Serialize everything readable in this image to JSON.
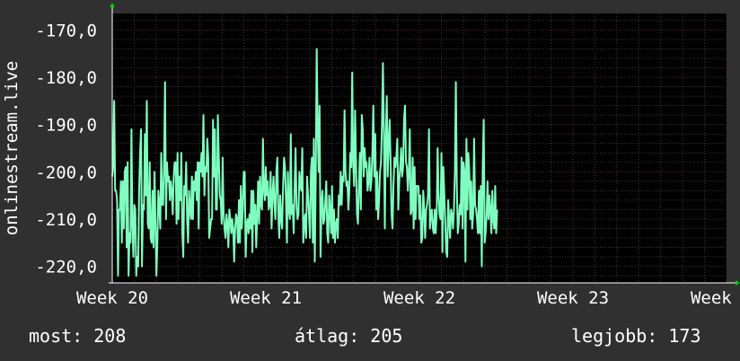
{
  "chart_data": {
    "type": "line",
    "ylabel": "onlinestream.live",
    "ylim": [
      -223.5,
      -166.5
    ],
    "yticks": [
      -170,
      -180,
      -190,
      -200,
      -210,
      -220
    ],
    "ytick_labels": [
      "-170,0",
      "-180,0",
      "-190,0",
      "-200,0",
      "-210,0",
      "-220,0"
    ],
    "xlim": [
      20,
      24
    ],
    "xticks": [
      20,
      21,
      22,
      23,
      24
    ],
    "xtick_labels": [
      "Week 20",
      "Week 21",
      "Week 22",
      "Week 23",
      "Week 24"
    ],
    "grid": true,
    "colors": {
      "background": "#303030",
      "plot_area": "#000000",
      "line": "#7fffbf",
      "grid_major": "#5a2d2d",
      "grid_minor": "#3a3a3a",
      "axis_arrow": "#00cc00"
    },
    "series": [
      {
        "x_step": 0.00625,
        "values": [
          -201,
          -199,
          -185,
          -204,
          -204,
          -206,
          -222,
          -208,
          -208,
          -202,
          -215,
          -202,
          -212,
          -200,
          -199,
          -216,
          -198,
          -222,
          -213,
          -215,
          -191,
          -211,
          -218,
          -207,
          -208,
          -222,
          -218,
          -220,
          -204,
          -196,
          -191,
          -220,
          -207,
          -208,
          -192,
          -205,
          -185,
          -211,
          -212,
          -198,
          -214,
          -215,
          -204,
          -216,
          -200,
          -210,
          -222,
          -215,
          -204,
          -207,
          -212,
          -196,
          -207,
          -207,
          -198,
          -181,
          -210,
          -198,
          -202,
          -201,
          -206,
          -202,
          -204,
          -209,
          -201,
          -198,
          -198,
          -211,
          -196,
          -210,
          -201,
          -206,
          -196,
          -213,
          -218,
          -203,
          -205,
          -198,
          -210,
          -215,
          -204,
          -208,
          -210,
          -201,
          -210,
          -202,
          -204,
          -200,
          -206,
          -198,
          -212,
          -198,
          -200,
          -196,
          -201,
          -188,
          -205,
          -199,
          -200,
          -193,
          -197,
          -214,
          -212,
          -210,
          -210,
          -189,
          -201,
          -191,
          -208,
          -208,
          -188,
          -197,
          -205,
          -206,
          -211,
          -197,
          -209,
          -212,
          -214,
          -209,
          -211,
          -216,
          -208,
          -210,
          -213,
          -210,
          -212,
          -219,
          -212,
          -209,
          -210,
          -215,
          -206,
          -215,
          -203,
          -212,
          -208,
          -200,
          -200,
          -218,
          -211,
          -210,
          -213,
          -209,
          -212,
          -204,
          -217,
          -204,
          -211,
          -207,
          -216,
          -209,
          -202,
          -211,
          -201,
          -207,
          -208,
          -193,
          -204,
          -206,
          -199,
          -205,
          -202,
          -208,
          -207,
          -200,
          -212,
          -205,
          -201,
          -207,
          -210,
          -200,
          -197,
          -209,
          -214,
          -205,
          -210,
          -212,
          -203,
          -197,
          -199,
          -206,
          -215,
          -200,
          -208,
          -210,
          -192,
          -209,
          -207,
          -213,
          -203,
          -195,
          -207,
          -210,
          -209,
          -200,
          -203,
          -204,
          -195,
          -215,
          -211,
          -209,
          -214,
          -201,
          -205,
          -209,
          -214,
          -200,
          -197,
          -215,
          -193,
          -219,
          -202,
          -174,
          -190,
          -200,
          -186,
          -218,
          -207,
          -204,
          -211,
          -210,
          -206,
          -202,
          -213,
          -215,
          -205,
          -208,
          -213,
          -203,
          -214,
          -208,
          -215,
          -211,
          -210,
          -214,
          -205,
          -207,
          -200,
          -207,
          -201,
          -202,
          -187,
          -200,
          -203,
          -202,
          -208,
          -204,
          -196,
          -199,
          -179,
          -198,
          -203,
          -187,
          -198,
          -209,
          -211,
          -203,
          -196,
          -208,
          -188,
          -191,
          -201,
          -195,
          -199,
          -198,
          -204,
          -202,
          -197,
          -204,
          -202,
          -196,
          -186,
          -201,
          -192,
          -208,
          -200,
          -210,
          -206,
          -200,
          -198,
          -190,
          -177,
          -191,
          -212,
          -193,
          -184,
          -201,
          -194,
          -189,
          -198,
          -209,
          -212,
          -203,
          -197,
          -199,
          -197,
          -193,
          -208,
          -202,
          -199,
          -195,
          -201,
          -199,
          -189,
          -186,
          -198,
          -199,
          -204,
          -200,
          -191,
          -209,
          -208,
          -197,
          -212,
          -199,
          -210,
          -203,
          -203,
          -203,
          -210,
          -205,
          -215,
          -214,
          -204,
          -208,
          -214,
          -208,
          -207,
          -205,
          -191,
          -212,
          -209,
          -208,
          -212,
          -213,
          -208,
          -213,
          -209,
          -195,
          -205,
          -209,
          -210,
          -196,
          -217,
          -199,
          -205,
          -211,
          -217,
          -218,
          -206,
          -210,
          -214,
          -208,
          -209,
          -212,
          -208,
          -200,
          -181,
          -203,
          -213,
          -211,
          -207,
          -209,
          -197,
          -212,
          -198,
          -200,
          -219,
          -193,
          -208,
          -196,
          -200,
          -210,
          -202,
          -212,
          -209,
          -193,
          -207,
          -208,
          -210,
          -213,
          -204,
          -213,
          -203,
          -220,
          -199,
          -189,
          -215,
          -213,
          -209,
          -202,
          -210,
          -205,
          -208,
          -213,
          -204,
          -210,
          -212,
          -203,
          -213,
          -208
        ]
      }
    ]
  },
  "stats": {
    "now": "most: 208",
    "avg": "átlag: 205",
    "best": "legjobb: 173"
  }
}
